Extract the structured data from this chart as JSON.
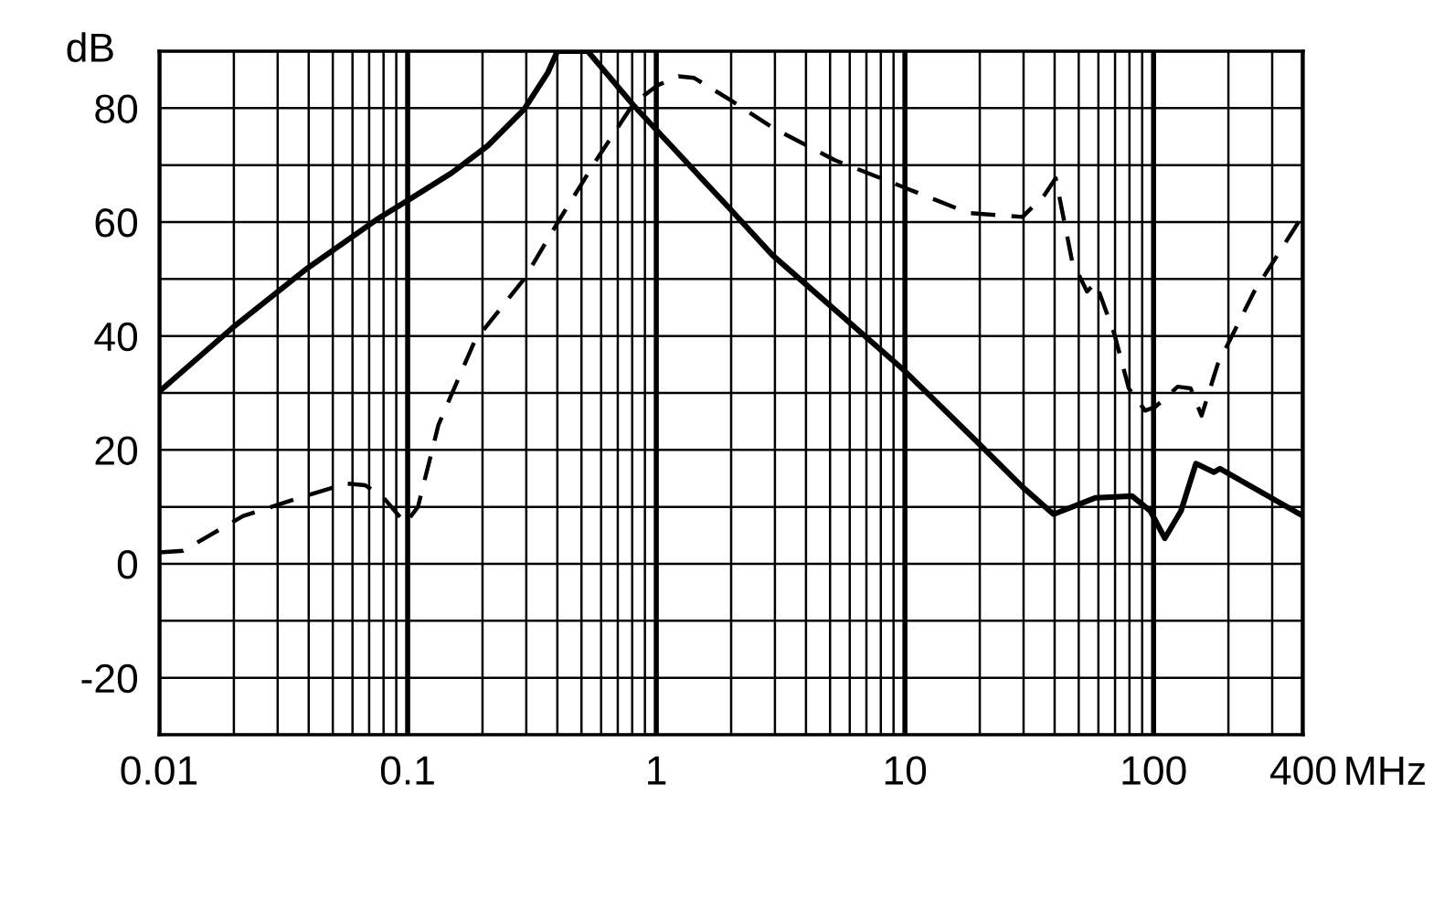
{
  "chart_data": {
    "type": "line",
    "xlabel": "MHz",
    "ylabel": "dB",
    "log": "x",
    "grid": true,
    "marker": "none",
    "xlim": [
      0.01,
      400
    ],
    "xticks": [
      0.01,
      0.1,
      1,
      10,
      100,
      400
    ],
    "ylim": [
      -30,
      90
    ],
    "yticks": [
      {
        "value": -30,
        "label": null
      },
      -20,
      {
        "value": -10,
        "label": null
      },
      0,
      {
        "value": 10,
        "label": null
      },
      20,
      {
        "value": 30,
        "label": null
      },
      40,
      {
        "value": 50,
        "label": null
      },
      60,
      {
        "value": 70,
        "label": null
      },
      80,
      {
        "value": 90,
        "label": null
      }
    ],
    "series": [
      {
        "color": "#000000",
        "line_style": "solid",
        "x": [
          0.01,
          0.0197,
          0.0387,
          0.076,
          0.1,
          0.15,
          0.21,
          0.294,
          0.366,
          0.4,
          0.53,
          0.81,
          0.98,
          1.99,
          2.93,
          9.9,
          18.8,
          29.7,
          39.6,
          58.5,
          82,
          97,
          111,
          129,
          148,
          175,
          185,
          400
        ],
        "values": [
          30.2,
          41.4,
          51.6,
          60.6,
          63.8,
          68.6,
          73.4,
          79.8,
          86.2,
          90,
          90,
          80.5,
          76.6,
          62.2,
          54.2,
          34,
          22.1,
          13.5,
          8.7,
          11.6,
          11.9,
          9.3,
          4.5,
          9.3,
          17.6,
          16.1,
          16.7,
          8.4
        ]
      },
      {
        "color": "#000000",
        "line_style": "dashed",
        "x": [
          0.01,
          0.0125,
          0.0218,
          0.0387,
          0.057,
          0.0675,
          0.08,
          0.098,
          0.11,
          0.133,
          0.186,
          0.294,
          0.41,
          0.58,
          0.81,
          1.01,
          1.23,
          1.42,
          1.99,
          2.93,
          5.2,
          9.9,
          18,
          29.7,
          36.5,
          40.4,
          47,
          54,
          58.5,
          69.5,
          79.5,
          92.5,
          102,
          125,
          141,
          156,
          181,
          254,
          400
        ],
        "values": [
          2.0,
          2.3,
          8.4,
          11.9,
          14.1,
          13.8,
          11.6,
          7.1,
          10.0,
          24.4,
          39.1,
          50.0,
          60.6,
          71.2,
          80.8,
          84.0,
          85.6,
          85.3,
          81.4,
          76.6,
          70.9,
          66.1,
          61.6,
          60.9,
          64.8,
          67.7,
          53.2,
          47.8,
          49.4,
          40.4,
          30.8,
          26.9,
          27.6,
          31.1,
          30.8,
          26.0,
          35,
          47.8,
          61.3
        ]
      }
    ]
  }
}
